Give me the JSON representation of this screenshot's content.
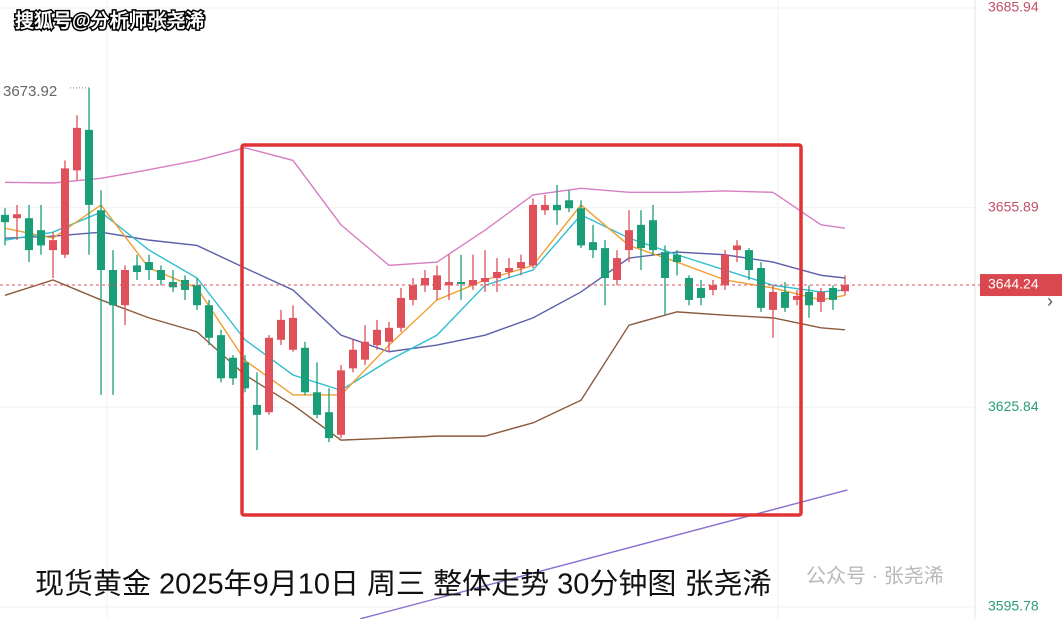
{
  "chart_data": {
    "type": "candlestick",
    "title": "现货黄金 2025年9月10日 周三 整体走势 30分钟图 张尧浠",
    "watermark": "搜狐号@分析师张尧浠",
    "watermark2": "公众号 · 张尧浠",
    "up_color": "#e0505a",
    "down_color": "#1a9e78",
    "ylim": [
      3595.78,
      3685.94
    ],
    "yticks": [
      3595.78,
      3625.84,
      3655.89,
      3685.94
    ],
    "grid": true,
    "open": [
      3654.8,
      3654.3,
      3654.3,
      3652.5,
      3649.5,
      3648.8,
      3661.5,
      3667.6,
      3655.5,
      3646.5,
      3641.2,
      3647.2,
      3647.7,
      3646.5,
      3644.7,
      3645.0,
      3644.2,
      3641.2,
      3636.7,
      3633.3,
      3632.6,
      3626.2,
      3625.1,
      3636.0,
      3634.5,
      3634.8,
      3628.1,
      3625.1,
      3621.7,
      3631.7,
      3633.0,
      3635.2,
      3635.7,
      3637.8,
      3642.0,
      3644.2,
      3643.5,
      3644.2,
      3644.7,
      3644.2,
      3644.7,
      3645.3,
      3646.2,
      3646.8,
      3647.2,
      3655.5,
      3656.3,
      3657.0,
      3655.8,
      3650.7,
      3649.8,
      3645.0,
      3649.5,
      3653.3,
      3654.0,
      3649.2,
      3648.8,
      3645.3,
      3643.8,
      3643.5,
      3644.2,
      3649.5,
      3649.5,
      3646.8,
      3640.5,
      3643.2,
      3642.0,
      3643.2,
      3641.7,
      3643.8,
      3643.3
    ],
    "high": [
      3655.8,
      3656.3,
      3656.3,
      3656.3,
      3652.2,
      3663.0,
      3669.8,
      3673.92,
      3658.5,
      3649.5,
      3647.2,
      3648.8,
      3648.8,
      3647.2,
      3646.5,
      3645.7,
      3645.3,
      3642.0,
      3637.5,
      3633.7,
      3633.7,
      3631.1,
      3636.7,
      3640.5,
      3641.2,
      3635.7,
      3632.6,
      3628.7,
      3632.2,
      3636.0,
      3638.2,
      3639.0,
      3638.7,
      3643.8,
      3645.3,
      3646.5,
      3647.2,
      3648.8,
      3648.8,
      3648.8,
      3649.5,
      3648.3,
      3648.3,
      3648.8,
      3657.3,
      3657.8,
      3659.3,
      3658.5,
      3657.0,
      3653.3,
      3651.0,
      3649.5,
      3655.5,
      3655.5,
      3656.3,
      3650.2,
      3649.5,
      3645.7,
      3645.0,
      3645.0,
      3649.5,
      3651.0,
      3649.8,
      3647.7,
      3644.2,
      3644.7,
      3643.5,
      3644.2,
      3643.8,
      3644.2,
      3645.7
    ],
    "low": [
      3650.2,
      3651.0,
      3647.7,
      3648.8,
      3645.3,
      3648.3,
      3660.0,
      3648.8,
      3627.7,
      3627.7,
      3638.2,
      3645.0,
      3645.0,
      3644.2,
      3643.2,
      3642.0,
      3640.5,
      3635.2,
      3629.6,
      3629.2,
      3628.1,
      3619.4,
      3624.7,
      3635.2,
      3634.2,
      3627.7,
      3624.2,
      3620.6,
      3621.2,
      3631.1,
      3632.2,
      3634.5,
      3634.2,
      3637.2,
      3641.2,
      3643.2,
      3642.0,
      3642.0,
      3642.0,
      3643.5,
      3643.2,
      3643.2,
      3645.3,
      3645.7,
      3646.8,
      3654.8,
      3653.3,
      3655.2,
      3649.8,
      3648.3,
      3641.2,
      3644.2,
      3647.7,
      3646.5,
      3648.8,
      3639.7,
      3645.7,
      3641.2,
      3641.2,
      3642.7,
      3643.5,
      3647.7,
      3645.0,
      3640.2,
      3636.3,
      3640.2,
      3641.2,
      3639.3,
      3640.2,
      3640.5,
      3642.7
    ],
    "close": [
      3653.7,
      3654.9,
      3649.5,
      3650.2,
      3651.0,
      3661.8,
      3667.9,
      3656.3,
      3646.5,
      3641.2,
      3646.5,
      3646.2,
      3646.5,
      3645.0,
      3643.9,
      3643.5,
      3641.2,
      3636.3,
      3630.2,
      3630.2,
      3628.7,
      3624.7,
      3636.3,
      3639.0,
      3639.3,
      3628.1,
      3624.7,
      3621.2,
      3631.4,
      3634.5,
      3635.7,
      3637.5,
      3637.8,
      3642.3,
      3644.2,
      3645.3,
      3645.7,
      3644.7,
      3644.4,
      3645.0,
      3645.3,
      3646.2,
      3646.8,
      3647.7,
      3656.3,
      3656.3,
      3655.5,
      3655.8,
      3650.2,
      3649.5,
      3645.3,
      3648.3,
      3652.5,
      3649.8,
      3649.5,
      3645.3,
      3647.7,
      3642.0,
      3642.3,
      3644.2,
      3648.8,
      3650.2,
      3646.5,
      3640.8,
      3643.2,
      3640.8,
      3642.6,
      3641.2,
      3643.2,
      3642.0,
      3644.24
    ],
    "series": [
      {
        "color": "#d77fc4",
        "x": [
          0,
          4,
          8,
          12,
          16,
          20,
          24,
          28,
          32,
          36,
          40,
          44,
          48,
          52,
          56,
          60,
          64,
          68,
          70
        ],
        "values": [
          3659.7,
          3659.6,
          3660.3,
          3661.6,
          3663.0,
          3664.9,
          3663.0,
          3653.3,
          3647.2,
          3647.7,
          3652.5,
          3657.8,
          3658.8,
          3658.2,
          3658.2,
          3658.4,
          3658.2,
          3653.3,
          3652.8
        ]
      },
      {
        "color": "#8b5a3c",
        "x": [
          0,
          4,
          8,
          12,
          16,
          20,
          24,
          28,
          32,
          36,
          40,
          44,
          48,
          52,
          56,
          60,
          64,
          68,
          70
        ],
        "values": [
          3642.7,
          3645.0,
          3642.0,
          3639.3,
          3637.2,
          3630.7,
          3626.2,
          3620.9,
          3621.2,
          3621.5,
          3621.5,
          3623.5,
          3626.9,
          3638.2,
          3640.2,
          3639.7,
          3639.3,
          3637.8,
          3637.5
        ]
      },
      {
        "color": "#5a5fa8",
        "x": [
          0,
          4,
          8,
          12,
          16,
          20,
          24,
          28,
          32,
          36,
          40,
          44,
          48,
          52,
          56,
          60,
          64,
          68,
          70
        ],
        "values": [
          3651.3,
          3651.6,
          3652.2,
          3651.0,
          3650.2,
          3646.8,
          3643.5,
          3636.7,
          3634.2,
          3635.2,
          3636.7,
          3639.3,
          3643.2,
          3648.3,
          3649.2,
          3648.8,
          3647.7,
          3645.7,
          3645.3
        ]
      },
      {
        "color": "#2fbfd0",
        "x": [
          0,
          4,
          8,
          12,
          16,
          20,
          24,
          28,
          32,
          36,
          40,
          44,
          48,
          52,
          56,
          60,
          64,
          68,
          70
        ],
        "values": [
          3651.0,
          3652.2,
          3655.2,
          3649.5,
          3645.3,
          3636.0,
          3630.7,
          3628.4,
          3632.9,
          3636.7,
          3644.2,
          3646.5,
          3654.8,
          3651.3,
          3648.8,
          3646.5,
          3644.2,
          3643.2,
          3643.5
        ]
      },
      {
        "color": "#f0a030",
        "x": [
          0,
          4,
          8,
          12,
          16,
          20,
          24,
          28,
          32,
          36,
          40,
          44,
          48,
          52,
          56,
          60,
          64,
          68,
          70
        ],
        "values": [
          3652.8,
          3651.3,
          3656.3,
          3646.8,
          3643.8,
          3632.9,
          3627.7,
          3627.7,
          3635.2,
          3642.0,
          3645.0,
          3647.2,
          3656.3,
          3650.2,
          3647.7,
          3645.0,
          3643.8,
          3642.0,
          3642.7
        ]
      },
      {
        "color": "#8a6fd0",
        "x": [
          29.6,
          70.2
        ],
        "values": [
          3594.0,
          3613.4
        ]
      }
    ]
  }
}
